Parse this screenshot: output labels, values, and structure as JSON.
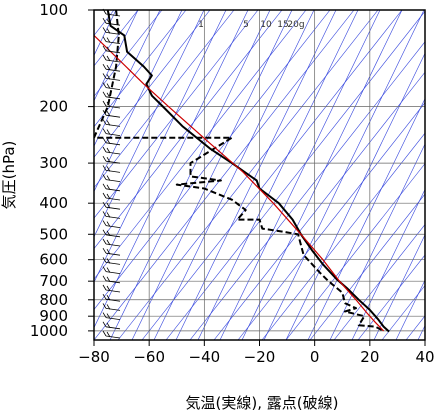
{
  "chart_data": {
    "type": "line",
    "title": "",
    "xlabel": "気温(実線), 露点(破線)",
    "ylabel": "気圧(hPa)",
    "xlim": [
      -80,
      40
    ],
    "ylim": [
      1030,
      100
    ],
    "y_scale": "log",
    "grid": true,
    "x_ticks": [
      "−80",
      "−60",
      "−40",
      "−20",
      "0",
      "20",
      "40"
    ],
    "x_tick_values": [
      -80,
      -60,
      -40,
      -20,
      0,
      20,
      40
    ],
    "y_ticks": [
      "100",
      "200",
      "300",
      "400",
      "500",
      "600",
      "700",
      "800",
      "900",
      "1000"
    ],
    "y_tick_values": [
      100,
      200,
      300,
      400,
      500,
      600,
      700,
      800,
      900,
      1000
    ],
    "mixing_ratio_labels": [
      "1",
      "5",
      "10",
      "15",
      "20g"
    ],
    "series": [
      {
        "style": "solid",
        "color": "#000000",
        "points": [
          [
            -75,
            100
          ],
          [
            -74,
            112
          ],
          [
            -69,
            120
          ],
          [
            -68,
            135
          ],
          [
            -62,
            150
          ],
          [
            -59,
            160
          ],
          [
            -61,
            170
          ],
          [
            -59,
            185
          ],
          [
            -55,
            200
          ],
          [
            -48,
            230
          ],
          [
            -38,
            270
          ],
          [
            -30,
            300
          ],
          [
            -21,
            340
          ],
          [
            -20,
            360
          ],
          [
            -13,
            400
          ],
          [
            -8,
            450
          ],
          [
            -5,
            500
          ],
          [
            -1,
            560
          ],
          [
            3,
            620
          ],
          [
            8,
            690
          ],
          [
            12,
            740
          ],
          [
            16,
            800
          ],
          [
            20,
            860
          ],
          [
            23,
            920
          ],
          [
            25,
            970
          ],
          [
            27,
            1005
          ]
        ]
      },
      {
        "style": "dashed",
        "color": "#000000",
        "points": [
          [
            -72,
            100
          ],
          [
            -71,
            120
          ],
          [
            -72,
            150
          ],
          [
            -75,
            200
          ],
          [
            -80,
            250
          ],
          [
            -30,
            250
          ],
          [
            -45,
            300
          ],
          [
            -45,
            330
          ],
          [
            -34,
            340
          ],
          [
            -50,
            350
          ],
          [
            -40,
            360
          ],
          [
            -30,
            390
          ],
          [
            -25,
            420
          ],
          [
            -28,
            450
          ],
          [
            -20,
            450
          ],
          [
            -19,
            480
          ],
          [
            -12,
            490
          ],
          [
            -6,
            500
          ],
          [
            -4,
            580
          ],
          [
            2,
            660
          ],
          [
            5,
            700
          ],
          [
            10,
            760
          ],
          [
            11,
            820
          ],
          [
            15,
            850
          ],
          [
            11,
            870
          ],
          [
            18,
            900
          ],
          [
            16,
            960
          ],
          [
            22,
            970
          ],
          [
            25,
            1000
          ]
        ]
      },
      {
        "style": "solid",
        "color": "#cc0000",
        "points": [
          [
            -80,
            120
          ],
          [
            -62,
            170
          ],
          [
            -53,
            200
          ],
          [
            -38,
            260
          ],
          [
            -26,
            320
          ],
          [
            -15,
            400
          ],
          [
            -5,
            500
          ],
          [
            3,
            600
          ],
          [
            9,
            700
          ],
          [
            15,
            800
          ],
          [
            19,
            880
          ],
          [
            22,
            940
          ],
          [
            25,
            1000
          ]
        ]
      }
    ]
  }
}
